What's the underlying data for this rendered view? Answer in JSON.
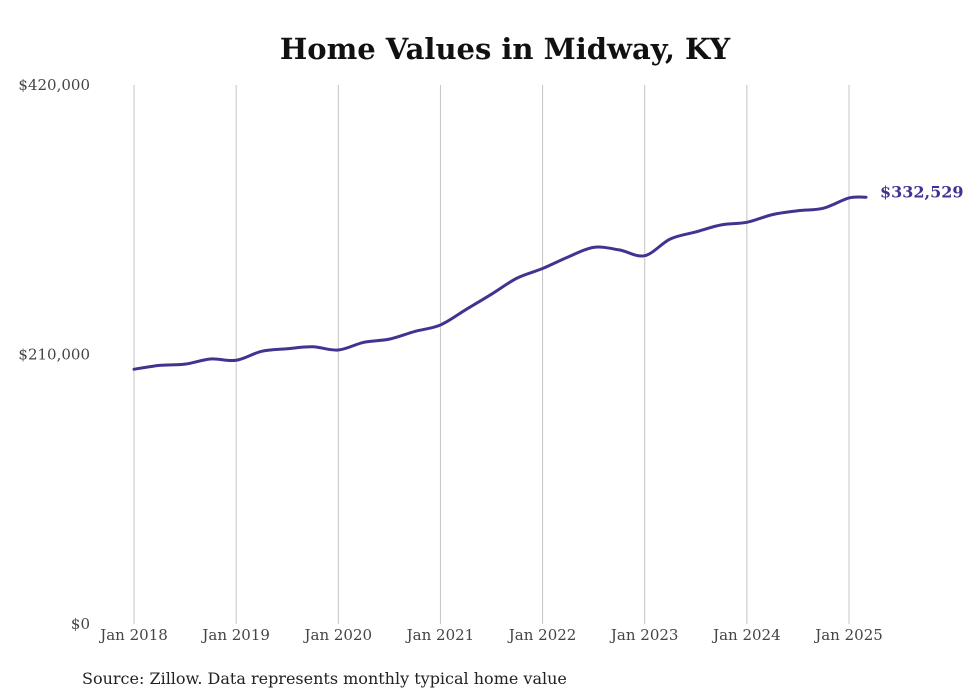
{
  "chart_data": {
    "type": "line",
    "title": "Home Values in Midway, KY",
    "xlabel": "",
    "ylabel": "",
    "ylim": [
      0,
      420000
    ],
    "y_ticks": [
      {
        "value": 0,
        "label": "$0"
      },
      {
        "value": 210000,
        "label": "$210,000"
      },
      {
        "value": 420000,
        "label": "$420,000"
      }
    ],
    "x_ticks": [
      {
        "year": 2018,
        "label": "Jan 2018"
      },
      {
        "year": 2019,
        "label": "Jan 2019"
      },
      {
        "year": 2020,
        "label": "Jan 2020"
      },
      {
        "year": 2021,
        "label": "Jan 2021"
      },
      {
        "year": 2022,
        "label": "Jan 2022"
      },
      {
        "year": 2023,
        "label": "Jan 2023"
      },
      {
        "year": 2024,
        "label": "Jan 2024"
      },
      {
        "year": 2025,
        "label": "Jan 2025"
      }
    ],
    "xlim": [
      "2018-01",
      "2025-03"
    ],
    "grid": "vertical",
    "legend": "none",
    "series": [
      {
        "color": "#3f3590",
        "end_label": "$332,529",
        "points": [
          {
            "date": "2018-01",
            "value": 198500
          },
          {
            "date": "2018-04",
            "value": 201500
          },
          {
            "date": "2018-07",
            "value": 202500
          },
          {
            "date": "2018-10",
            "value": 206500
          },
          {
            "date": "2019-01",
            "value": 205500
          },
          {
            "date": "2019-04",
            "value": 212500
          },
          {
            "date": "2019-07",
            "value": 214500
          },
          {
            "date": "2019-10",
            "value": 216000
          },
          {
            "date": "2020-01",
            "value": 213500
          },
          {
            "date": "2020-04",
            "value": 219500
          },
          {
            "date": "2020-07",
            "value": 222000
          },
          {
            "date": "2020-10",
            "value": 228000
          },
          {
            "date": "2021-01",
            "value": 233000
          },
          {
            "date": "2021-04",
            "value": 245000
          },
          {
            "date": "2021-07",
            "value": 257000
          },
          {
            "date": "2021-10",
            "value": 269500
          },
          {
            "date": "2022-01",
            "value": 277000
          },
          {
            "date": "2022-04",
            "value": 286000
          },
          {
            "date": "2022-07",
            "value": 293500
          },
          {
            "date": "2022-10",
            "value": 291500
          },
          {
            "date": "2023-01",
            "value": 287000
          },
          {
            "date": "2023-04",
            "value": 300000
          },
          {
            "date": "2023-07",
            "value": 305500
          },
          {
            "date": "2023-10",
            "value": 311000
          },
          {
            "date": "2024-01",
            "value": 313000
          },
          {
            "date": "2024-04",
            "value": 319000
          },
          {
            "date": "2024-07",
            "value": 322000
          },
          {
            "date": "2024-10",
            "value": 324000
          },
          {
            "date": "2025-01",
            "value": 332000
          },
          {
            "date": "2025-03",
            "value": 332529
          }
        ]
      }
    ]
  },
  "footer": {
    "source": "Source: Zillow. Data represents monthly typical home value"
  }
}
